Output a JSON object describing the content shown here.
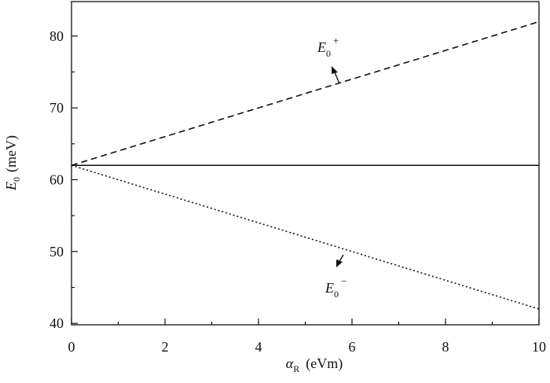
{
  "chart_data": {
    "type": "line",
    "xlabel": {
      "symbol": "α",
      "sub": "R",
      "unit": "(eVm)"
    },
    "ylabel": {
      "symbol": "E",
      "sub": "0",
      "unit": "(meV)"
    },
    "x": [
      0,
      10
    ],
    "series": [
      {
        "color": "#111111",
        "dash": "dashed",
        "values": [
          62,
          82
        ]
      },
      {
        "color": "#111111",
        "dash": "solid",
        "values": [
          62,
          62
        ]
      },
      {
        "color": "#111111",
        "dash": "dotted",
        "values": [
          62,
          42
        ]
      }
    ],
    "annotations": [
      {
        "symbol": "E",
        "sub": "0",
        "sup": "+"
      },
      {
        "symbol": "E",
        "sub": "0",
        "sup": "−"
      }
    ],
    "xlim": [
      0,
      10
    ],
    "xticks": [
      0,
      2,
      4,
      6,
      8,
      10
    ],
    "xticks_minor": [
      1,
      3,
      5,
      7,
      9
    ],
    "ylim": [
      39.8,
      84.8
    ],
    "yticks": [
      40,
      50,
      60,
      70,
      80
    ],
    "yticks_minor": [
      45,
      55,
      65,
      75
    ],
    "grid": false
  }
}
